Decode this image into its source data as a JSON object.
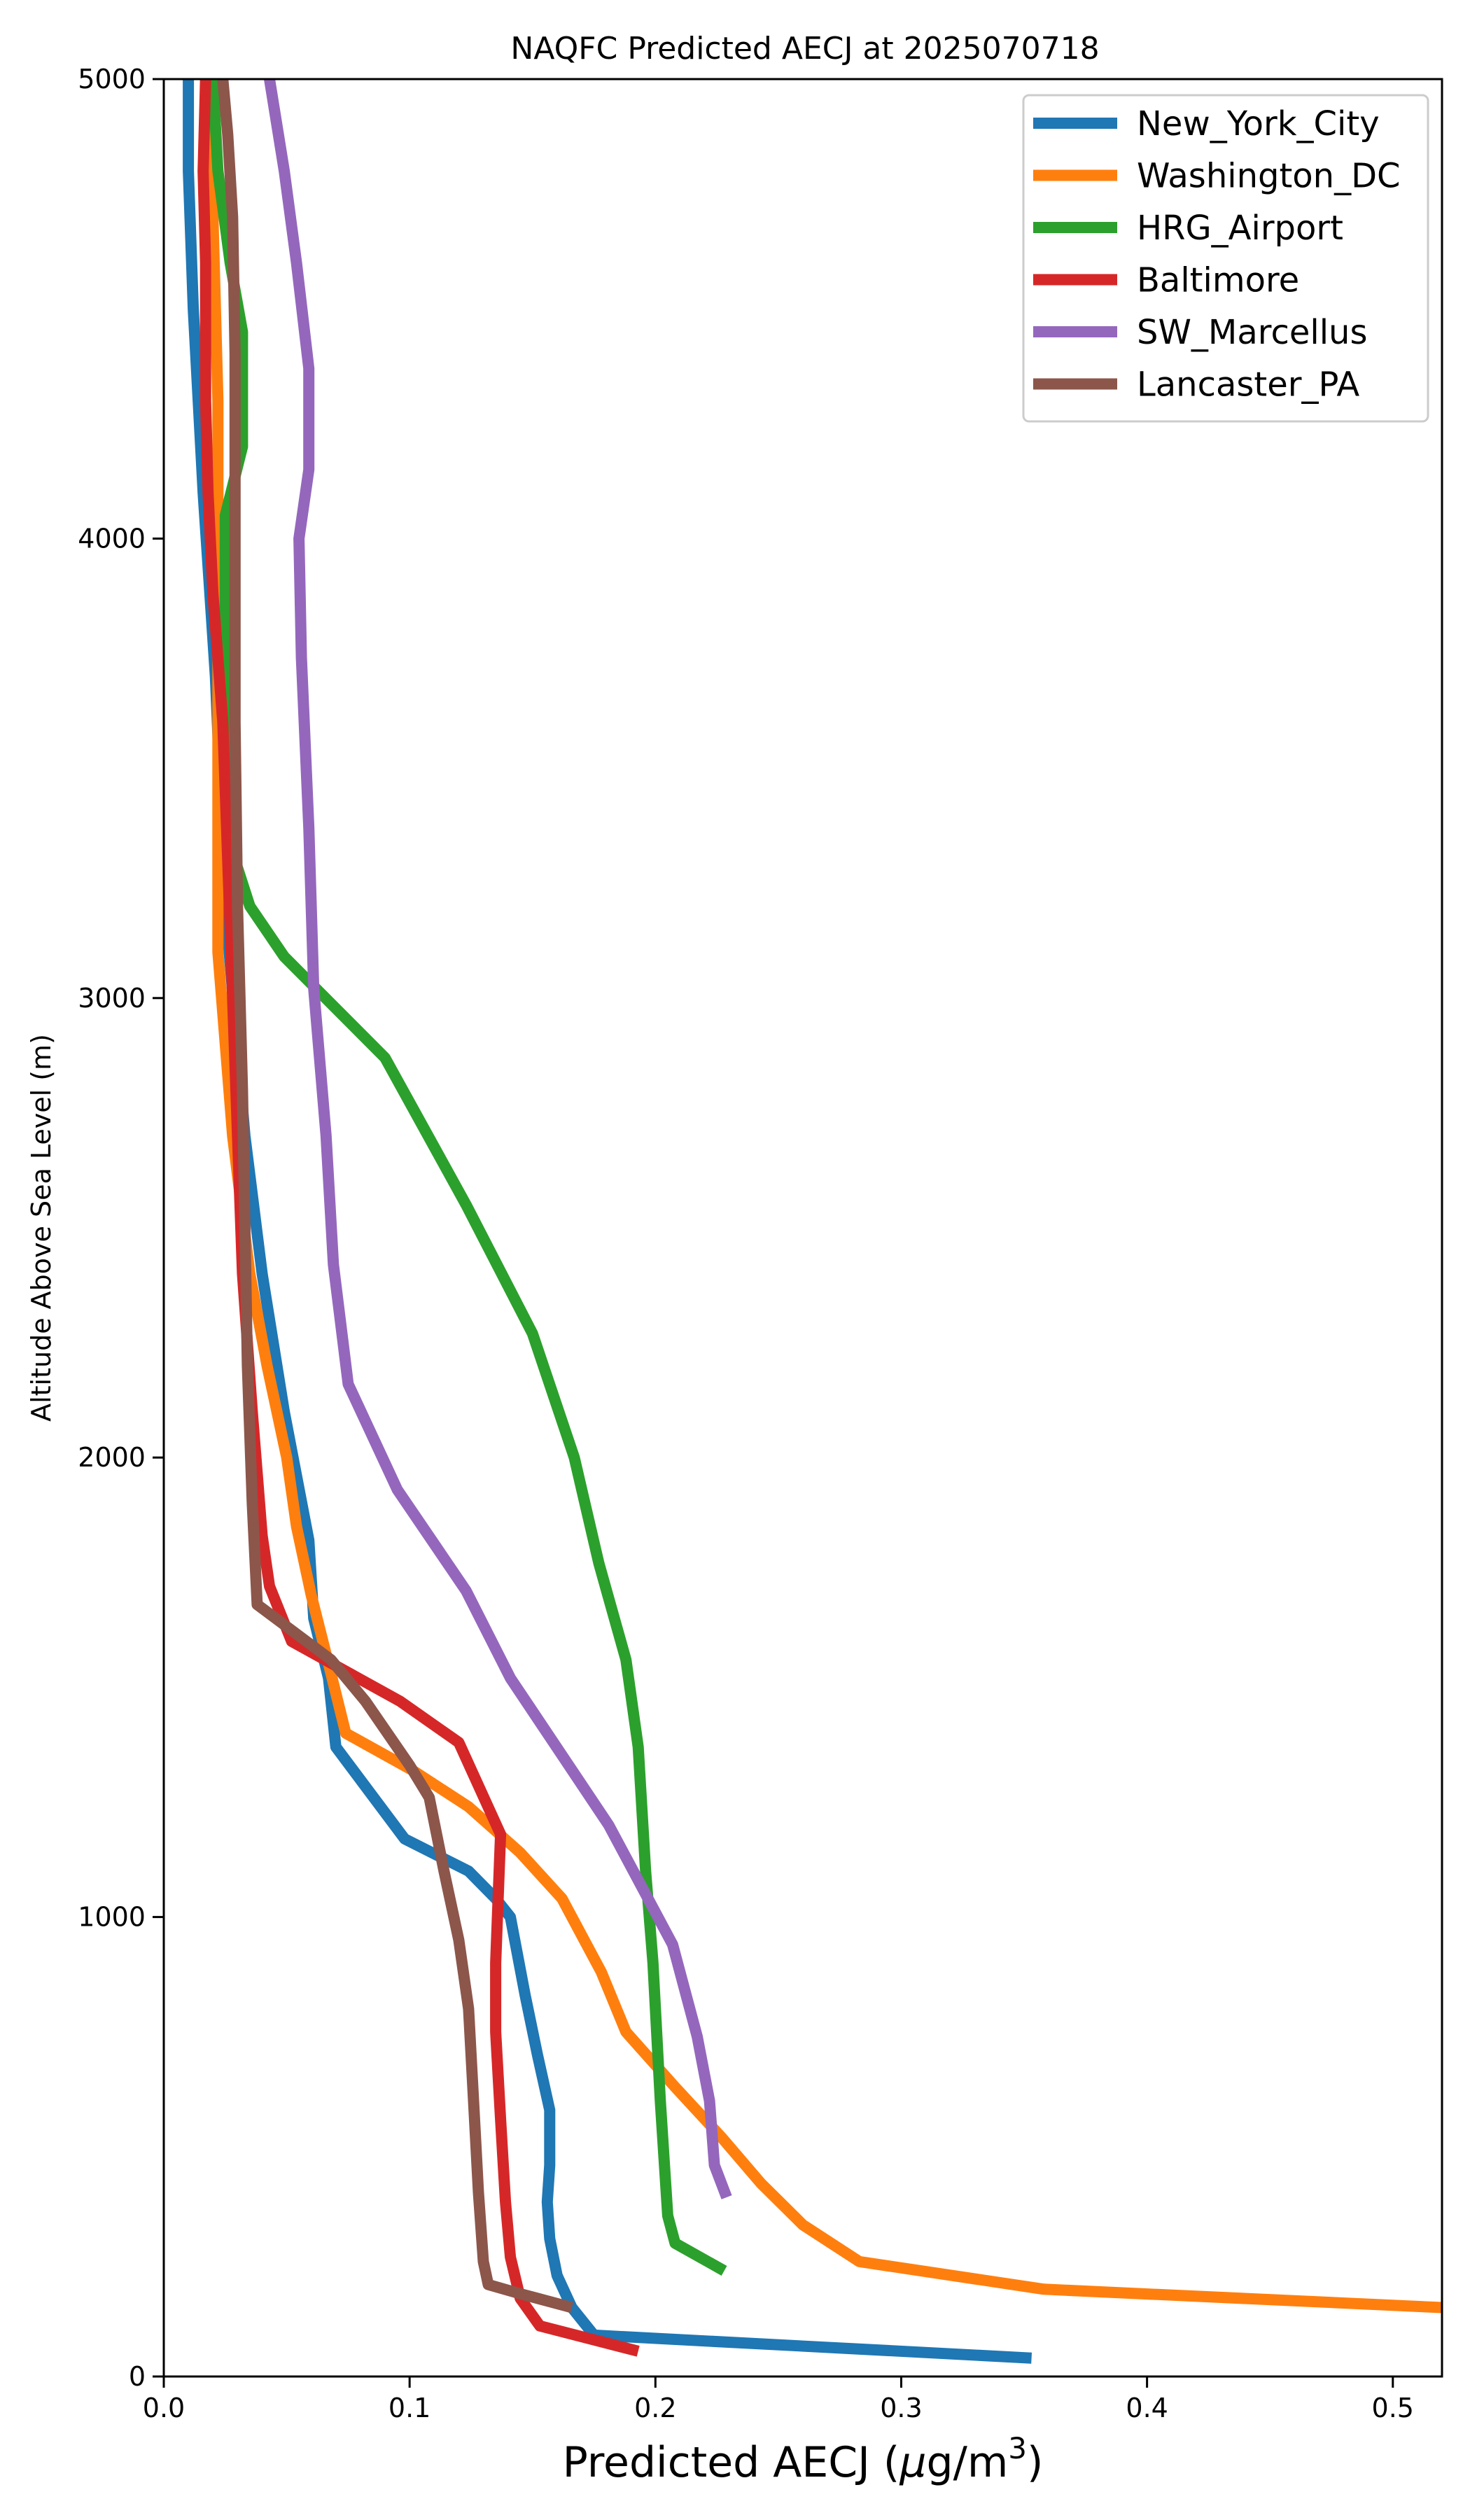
{
  "chart_data": {
    "type": "line",
    "title": "NAQFC Predicted AECJ at 2025070718",
    "xlabel": "Predicted AECJ (",
    "xlabel_mu": "μ",
    "xlabel_unit": "g/m",
    "xlabel_sup": "3",
    "xlabel_close": ")",
    "ylabel": "Altitude Above Sea Level (m)",
    "xlim": [
      0,
      0.52
    ],
    "ylim": [
      0,
      5000
    ],
    "xticks": [
      0.0,
      0.1,
      0.2,
      0.3,
      0.4,
      0.5
    ],
    "xtick_labels": [
      "0.0",
      "0.1",
      "0.2",
      "0.3",
      "0.4",
      "0.5"
    ],
    "yticks": [
      0,
      1000,
      2000,
      3000,
      4000,
      5000
    ],
    "ytick_labels": [
      "0",
      "1000",
      "2000",
      "3000",
      "4000",
      "5000"
    ],
    "grid": false,
    "legend_position": "top-right",
    "series": [
      {
        "name": "New_York_City",
        "color": "#1f77b4",
        "x": [
          0.353,
          0.175,
          0.166,
          0.16,
          0.157,
          0.156,
          0.157,
          0.157,
          0.152,
          0.147,
          0.141,
          0.135,
          0.124,
          0.098,
          0.07,
          0.067,
          0.061,
          0.059,
          0.049,
          0.04,
          0.033,
          0.025,
          0.021,
          0.016,
          0.012,
          0.01,
          0.01
        ],
        "y": [
          40,
          90,
          150,
          220,
          300,
          380,
          460,
          580,
          700,
          830,
          1000,
          1040,
          1100,
          1170,
          1370,
          1520,
          1650,
          1820,
          2100,
          2400,
          2700,
          3200,
          3700,
          4100,
          4500,
          4800,
          5000
        ]
      },
      {
        "name": "Washington_DC",
        "color": "#ff7f0e",
        "x": [
          0.52,
          0.358,
          0.283,
          0.26,
          0.243,
          0.227,
          0.208,
          0.188,
          0.178,
          0.162,
          0.145,
          0.124,
          0.101,
          0.074,
          0.068,
          0.06,
          0.054,
          0.05,
          0.042,
          0.035,
          0.028,
          0.022,
          0.022,
          0.022,
          0.022,
          0.02,
          0.018
        ],
        "y": [
          150,
          190,
          250,
          330,
          420,
          520,
          630,
          750,
          880,
          1040,
          1140,
          1240,
          1320,
          1400,
          1530,
          1700,
          1850,
          2000,
          2200,
          2400,
          2700,
          3100,
          3500,
          3900,
          4300,
          4700,
          5000
        ]
      },
      {
        "name": "HRG_Airport",
        "color": "#2ca02c",
        "x": [
          0.228,
          0.208,
          0.205,
          0.202,
          0.199,
          0.196,
          0.193,
          0.188,
          0.177,
          0.167,
          0.15,
          0.123,
          0.09,
          0.049,
          0.035,
          0.026,
          0.025,
          0.025,
          0.025,
          0.025,
          0.032,
          0.032,
          0.027,
          0.022,
          0.02
        ],
        "y": [
          230,
          290,
          350,
          600,
          900,
          1100,
          1370,
          1560,
          1770,
          2000,
          2270,
          2550,
          2870,
          3090,
          3200,
          3350,
          3500,
          3700,
          3900,
          4050,
          4200,
          4450,
          4600,
          4800,
          5000
        ]
      },
      {
        "name": "Baltimore",
        "color": "#d62728",
        "x": [
          0.193,
          0.153,
          0.145,
          0.141,
          0.139,
          0.137,
          0.135,
          0.135,
          0.137,
          0.12,
          0.096,
          0.052,
          0.043,
          0.04,
          0.036,
          0.032,
          0.03,
          0.028,
          0.026,
          0.024,
          0.02,
          0.018,
          0.017,
          0.017,
          0.016,
          0.017
        ],
        "y": [
          55,
          110,
          170,
          260,
          380,
          560,
          750,
          900,
          1180,
          1380,
          1470,
          1600,
          1720,
          1830,
          2100,
          2400,
          2700,
          3000,
          3300,
          3600,
          3880,
          4100,
          4300,
          4600,
          4800,
          5000
        ]
      },
      {
        "name": "SW_Marcellus",
        "color": "#9467bd",
        "x": [
          0.229,
          0.224,
          0.222,
          0.217,
          0.207,
          0.196,
          0.181,
          0.161,
          0.141,
          0.123,
          0.095,
          0.075,
          0.069,
          0.066,
          0.061,
          0.059,
          0.056,
          0.055,
          0.059,
          0.059,
          0.054,
          0.049,
          0.043
        ],
        "y": [
          390,
          460,
          600,
          740,
          940,
          1050,
          1200,
          1360,
          1520,
          1710,
          1930,
          2160,
          2420,
          2700,
          3020,
          3370,
          3740,
          4000,
          4150,
          4370,
          4600,
          4800,
          5000
        ]
      },
      {
        "name": "Lancaster_PA",
        "color": "#8c564b",
        "x": [
          0.166,
          0.145,
          0.132,
          0.13,
          0.128,
          0.126,
          0.124,
          0.12,
          0.114,
          0.108,
          0.1,
          0.082,
          0.068,
          0.038,
          0.036,
          0.034,
          0.033,
          0.032,
          0.03,
          0.029,
          0.029,
          0.029,
          0.028,
          0.026,
          0.024
        ],
        "y": [
          150,
          180,
          200,
          250,
          400,
          600,
          800,
          950,
          1100,
          1260,
          1330,
          1470,
          1560,
          1680,
          1900,
          2200,
          2500,
          2800,
          3200,
          3600,
          4000,
          4400,
          4700,
          4880,
          5000
        ]
      }
    ]
  }
}
